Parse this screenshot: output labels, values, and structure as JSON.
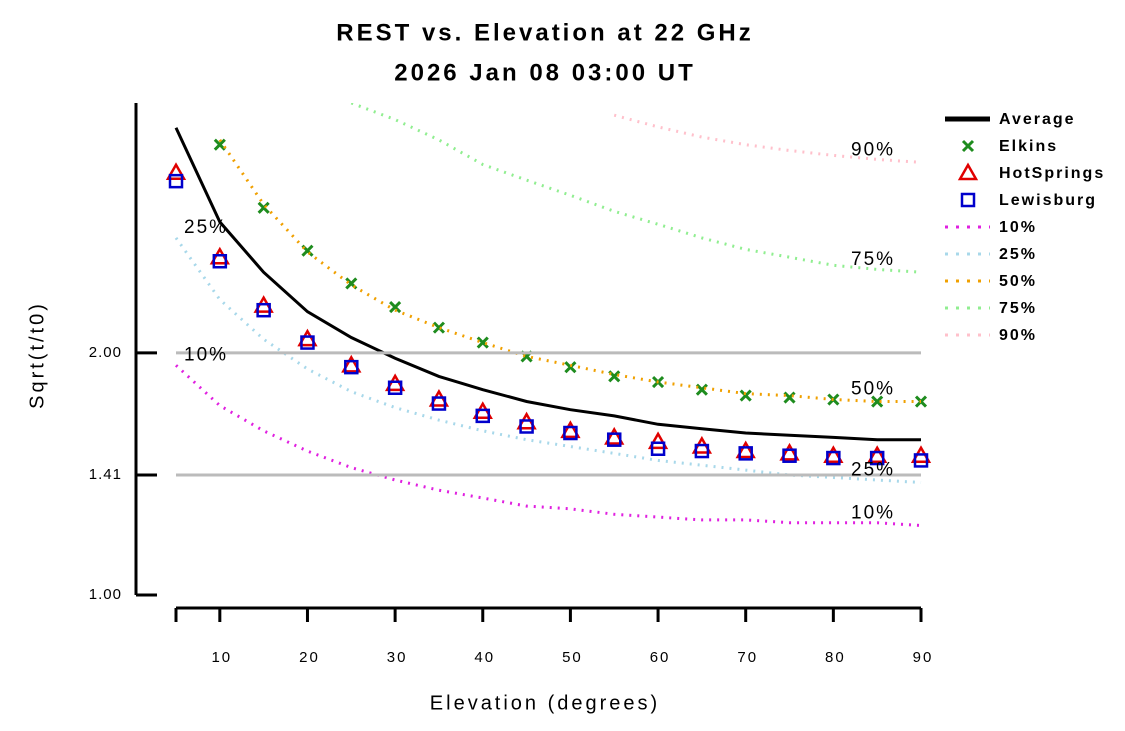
{
  "chart_data": {
    "type": "line",
    "title": "REST vs. Elevation at 22 GHz",
    "subtitle": "2026 Jan 08 03:00 UT",
    "x_label": "Elevation (degrees)",
    "y_label": "Sqrt(t/t0)",
    "xlim": [
      5,
      90
    ],
    "xticks": [
      10,
      20,
      30,
      40,
      50,
      60,
      70,
      80,
      90
    ],
    "ylim": [
      1,
      4.09
    ],
    "log_y": true,
    "yticks": [
      {
        "value": 1,
        "label": "1.00"
      },
      {
        "value": 1.41,
        "label": "1.41"
      },
      {
        "value": 2,
        "label": "2.00"
      }
    ],
    "grid": true,
    "legend": "right",
    "series": [
      {
        "name": "Average",
        "color": "#000000",
        "style": "line",
        "x": [
          5,
          10,
          15,
          20,
          25,
          30,
          35,
          40,
          45,
          50,
          55,
          60,
          65,
          70,
          75,
          80,
          85,
          90
        ],
        "values": [
          3.81,
          2.91,
          2.52,
          2.25,
          2.09,
          1.97,
          1.87,
          1.8,
          1.74,
          1.7,
          1.67,
          1.63,
          1.61,
          1.59,
          1.58,
          1.57,
          1.56,
          1.56
        ]
      },
      {
        "name": "Elkins",
        "color": "#1e8c1e",
        "style": "marker",
        "marker": "x",
        "x": [
          10,
          15,
          20,
          25,
          30,
          35,
          40,
          45,
          50,
          55,
          60,
          65,
          70,
          75,
          80,
          85,
          90
        ],
        "values": [
          3.63,
          3.03,
          2.68,
          2.44,
          2.28,
          2.15,
          2.06,
          1.98,
          1.92,
          1.87,
          1.84,
          1.8,
          1.77,
          1.76,
          1.75,
          1.74,
          1.74
        ]
      },
      {
        "name": "HotSprings",
        "color": "#e00000",
        "style": "marker",
        "marker": "triangle",
        "x": [
          5,
          10,
          15,
          20,
          25,
          30,
          35,
          40,
          45,
          50,
          55,
          60,
          65,
          70,
          75,
          80,
          85,
          90
        ],
        "values": [
          3.35,
          2.63,
          2.29,
          2.08,
          1.93,
          1.83,
          1.75,
          1.69,
          1.64,
          1.6,
          1.57,
          1.55,
          1.53,
          1.51,
          1.5,
          1.49,
          1.49,
          1.49
        ]
      },
      {
        "name": "Lewisburg",
        "color": "#0000cc",
        "style": "marker",
        "marker": "square",
        "x": [
          5,
          10,
          15,
          20,
          25,
          30,
          35,
          40,
          45,
          50,
          55,
          60,
          65,
          70,
          75,
          80,
          85,
          90
        ],
        "values": [
          3.27,
          2.6,
          2.26,
          2.06,
          1.92,
          1.81,
          1.73,
          1.67,
          1.62,
          1.59,
          1.56,
          1.52,
          1.51,
          1.5,
          1.49,
          1.48,
          1.48,
          1.47
        ]
      },
      {
        "name": "10%",
        "color": "#e020e0",
        "style": "dotted",
        "x": [
          5,
          10,
          15,
          20,
          25,
          30,
          35,
          40,
          45,
          50,
          55,
          60,
          65,
          70,
          75,
          80,
          85,
          90
        ],
        "values": [
          1.93,
          1.72,
          1.6,
          1.51,
          1.44,
          1.39,
          1.35,
          1.32,
          1.29,
          1.28,
          1.26,
          1.25,
          1.24,
          1.24,
          1.23,
          1.23,
          1.23,
          1.22
        ]
      },
      {
        "name": "25%",
        "color": "#a8d8ea",
        "style": "dotted",
        "x": [
          5,
          10,
          15,
          20,
          25,
          30,
          35,
          40,
          45,
          50,
          55,
          60,
          65,
          70,
          75,
          80,
          85,
          90
        ],
        "values": [
          2.78,
          2.33,
          2.08,
          1.91,
          1.79,
          1.71,
          1.65,
          1.6,
          1.56,
          1.53,
          1.5,
          1.47,
          1.45,
          1.43,
          1.41,
          1.4,
          1.39,
          1.38
        ]
      },
      {
        "name": "50%",
        "color": "#f0a000",
        "style": "dotted",
        "x": [
          10,
          15,
          20,
          25,
          30,
          35,
          40,
          45,
          50,
          55,
          60,
          65,
          70,
          75,
          80,
          85,
          90
        ],
        "values": [
          3.68,
          3.06,
          2.67,
          2.43,
          2.26,
          2.15,
          2.06,
          1.98,
          1.93,
          1.88,
          1.84,
          1.81,
          1.78,
          1.77,
          1.75,
          1.74,
          1.74
        ]
      },
      {
        "name": "75%",
        "color": "#90ee90",
        "style": "dotted",
        "x": [
          25,
          30,
          35,
          40,
          45,
          50,
          55,
          60,
          65,
          70,
          75,
          80,
          85,
          90
        ],
        "values": [
          4.09,
          3.9,
          3.68,
          3.43,
          3.28,
          3.14,
          3.0,
          2.89,
          2.78,
          2.69,
          2.63,
          2.57,
          2.54,
          2.52
        ]
      },
      {
        "name": "90%",
        "color": "#ffc0cb",
        "style": "dotted",
        "x": [
          55,
          60,
          65,
          70,
          75,
          80,
          85,
          90
        ],
        "values": [
          3.95,
          3.82,
          3.71,
          3.63,
          3.57,
          3.52,
          3.48,
          3.45
        ]
      }
    ]
  }
}
